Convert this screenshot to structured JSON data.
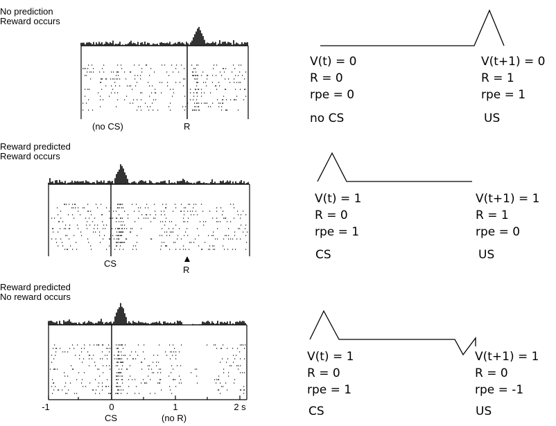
{
  "panels": [
    {
      "condition": [
        "No prediction",
        "Reward occurs"
      ],
      "marker_labels": [
        "(no CS)",
        "R"
      ],
      "left": {
        "vt": "V(t) = 0",
        "r": "R = 0",
        "rpe": "rpe = 0",
        "stim": "no CS"
      },
      "right": {
        "vt": "V(t+1) = 0",
        "r": "R = 1",
        "rpe": "rpe = 1",
        "stim": "US"
      }
    },
    {
      "condition": [
        "Reward predicted",
        "Reward occurs"
      ],
      "marker_labels": [
        "CS",
        "R"
      ],
      "left": {
        "vt": "V(t) = 1",
        "r": "R = 0",
        "rpe": "rpe = 1",
        "stim": "CS"
      },
      "right": {
        "vt": "V(t+1) = 1",
        "r": "R = 1",
        "rpe": "rpe = 0",
        "stim": "US"
      }
    },
    {
      "condition": [
        "Reward predicted",
        "No reward occurs"
      ],
      "marker_labels": [
        "CS",
        "(no R)"
      ],
      "left": {
        "vt": "V(t) = 1",
        "r": "R = 0",
        "rpe": "rpe = 1",
        "stim": "CS"
      },
      "right": {
        "vt": "V(t+1) = 1",
        "r": "R = 0",
        "rpe": "rpe = -1",
        "stim": "US"
      }
    }
  ],
  "axis": {
    "ticks": [
      "-1",
      "0",
      "1",
      "2 s"
    ]
  }
}
